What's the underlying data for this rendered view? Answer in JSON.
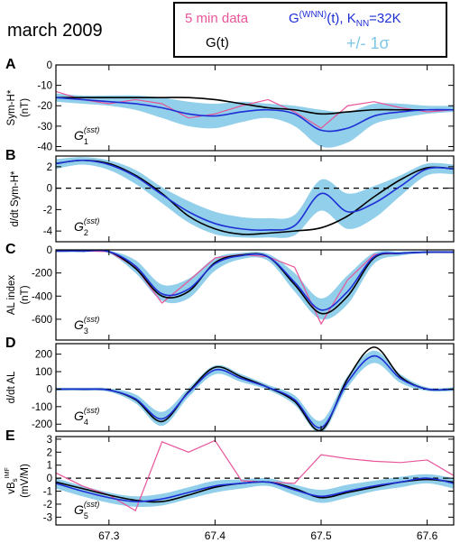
{
  "figure": {
    "title": "march 2009",
    "legend": {
      "five_min": "5 min data",
      "wnn_main": "G",
      "wnn_sup": "(WNN)",
      "wnn_tail": "(t), K",
      "knn_sub": "NN",
      "knn_val": "=32K",
      "gt": "G(t)",
      "sigma": "+/- 1σ"
    },
    "colors": {
      "five_min": "#e8559a",
      "wnn": "#1f2fd6",
      "gt": "#000000",
      "band": "#7ec7e6",
      "zero": "#000000"
    }
  },
  "chart_data": [
    {
      "type": "line",
      "panel": "A",
      "ylabel": "Sym-H*",
      "ylabel2": "(nT)",
      "annotation": "G1",
      "annotation_sub": "1",
      "ylim": [
        -42,
        0
      ],
      "yticks": [
        0,
        -10,
        -20,
        -30,
        -40
      ],
      "xlim": [
        67.25,
        67.625
      ],
      "zero_line": false,
      "x": [
        67.25,
        67.275,
        67.3,
        67.325,
        67.35,
        67.375,
        67.4,
        67.425,
        67.45,
        67.475,
        67.5,
        67.525,
        67.55,
        67.575,
        67.6,
        67.625
      ],
      "series": [
        {
          "role": "five_min",
          "values": [
            -13,
            -17,
            -19,
            -17,
            -19,
            -26,
            -24,
            -20,
            -17,
            -23,
            -31,
            -20,
            -18,
            -21,
            -23,
            -22
          ]
        },
        {
          "role": "wnn",
          "values": [
            -16,
            -17,
            -18,
            -19,
            -21,
            -24,
            -25,
            -23,
            -22,
            -24,
            -32,
            -31,
            -25,
            -23,
            -22,
            -22
          ]
        },
        {
          "role": "gt",
          "values": [
            -16,
            -16,
            -16,
            -16,
            -16,
            -16,
            -17,
            -19,
            -21,
            -22,
            -24,
            -23,
            -22,
            -22,
            -22,
            -22
          ]
        }
      ],
      "band": {
        "upper": [
          -14,
          -15,
          -15,
          -15,
          -16,
          -18,
          -19,
          -18,
          -19,
          -20,
          -22,
          -23,
          -19,
          -19,
          -20,
          -20
        ],
        "lower": [
          -18,
          -19,
          -20,
          -22,
          -26,
          -30,
          -31,
          -28,
          -26,
          -30,
          -40,
          -38,
          -29,
          -26,
          -24,
          -23
        ]
      }
    },
    {
      "type": "line",
      "panel": "B",
      "ylabel": "d/dt Sym-H*",
      "ylabel2": "",
      "annotation": "G2",
      "annotation_sub": "2",
      "ylim": [
        -5,
        3
      ],
      "yticks": [
        2,
        0,
        -2,
        -4
      ],
      "xlim": [
        67.25,
        67.625
      ],
      "zero_line": true,
      "x": [
        67.25,
        67.275,
        67.3,
        67.325,
        67.35,
        67.375,
        67.4,
        67.425,
        67.45,
        67.475,
        67.5,
        67.525,
        67.55,
        67.575,
        67.6,
        67.625
      ],
      "series": [
        {
          "role": "wnn",
          "values": [
            2.3,
            2.6,
            2.2,
            1.1,
            -0.6,
            -2.2,
            -3.3,
            -3.8,
            -3.9,
            -3.5,
            -0.5,
            -2.2,
            -1.4,
            0.2,
            1.8,
            1.8
          ]
        },
        {
          "role": "gt",
          "values": [
            2.3,
            2.6,
            2.3,
            1.2,
            -0.5,
            -2.6,
            -3.8,
            -4.3,
            -4.2,
            -4.0,
            -3.7,
            -2.6,
            -0.8,
            0.8,
            1.9,
            1.8
          ]
        }
      ],
      "band": {
        "upper": [
          2.7,
          2.9,
          2.6,
          1.7,
          0.1,
          -1.2,
          -2.2,
          -2.7,
          -2.8,
          -2.5,
          0.8,
          -0.5,
          0.2,
          1.2,
          2.3,
          2.2
        ],
        "lower": [
          1.8,
          2.2,
          1.7,
          0.4,
          -1.4,
          -3.2,
          -4.3,
          -4.6,
          -4.6,
          -4.4,
          -2.1,
          -3.8,
          -2.8,
          -0.7,
          1.2,
          1.3
        ]
      }
    },
    {
      "type": "line",
      "panel": "C",
      "ylabel": "AL index",
      "ylabel2": "(nT)",
      "annotation": "G3",
      "annotation_sub": "3",
      "ylim": [
        -780,
        0
      ],
      "yticks": [
        0,
        -200,
        -400,
        -600
      ],
      "xlim": [
        67.25,
        67.625
      ],
      "zero_line": false,
      "x": [
        67.25,
        67.275,
        67.3,
        67.325,
        67.35,
        67.375,
        67.4,
        67.425,
        67.45,
        67.475,
        67.5,
        67.525,
        67.55,
        67.575,
        67.6,
        67.625
      ],
      "series": [
        {
          "role": "five_min",
          "values": [
            -10,
            -10,
            -15,
            -150,
            -460,
            -270,
            -70,
            -40,
            -60,
            -150,
            -640,
            -260,
            -40,
            -30,
            -20,
            -20
          ]
        },
        {
          "role": "wnn",
          "values": [
            -10,
            -10,
            -15,
            -140,
            -380,
            -340,
            -120,
            -50,
            -60,
            -280,
            -520,
            -360,
            -60,
            -30,
            -20,
            -20
          ]
        },
        {
          "role": "gt",
          "values": [
            -10,
            -10,
            -15,
            -160,
            -400,
            -360,
            -110,
            -45,
            -60,
            -300,
            -550,
            -400,
            -70,
            -30,
            -20,
            -20
          ]
        }
      ],
      "band": {
        "upper": [
          -5,
          -5,
          -8,
          -90,
          -300,
          -250,
          -70,
          -25,
          -35,
          -200,
          -420,
          -220,
          -25,
          -15,
          -10,
          -10
        ],
        "lower": [
          -20,
          -20,
          -30,
          -200,
          -440,
          -420,
          -180,
          -80,
          -95,
          -360,
          -600,
          -470,
          -120,
          -50,
          -30,
          -30
        ]
      }
    },
    {
      "type": "line",
      "panel": "D",
      "ylabel": "d/dt AL",
      "ylabel2": "",
      "annotation": "G4",
      "annotation_sub": "4",
      "ylim": [
        -240,
        260
      ],
      "yticks": [
        200,
        100,
        0,
        -100,
        -200
      ],
      "xlim": [
        67.25,
        67.625
      ],
      "zero_line": true,
      "x": [
        67.25,
        67.275,
        67.3,
        67.325,
        67.35,
        67.375,
        67.4,
        67.425,
        67.45,
        67.475,
        67.5,
        67.525,
        67.55,
        67.575,
        67.6,
        67.625
      ],
      "series": [
        {
          "role": "wnn",
          "values": [
            0,
            0,
            -5,
            -55,
            -170,
            -20,
            110,
            60,
            10,
            -60,
            -220,
            40,
            190,
            60,
            0,
            0
          ]
        },
        {
          "role": "gt",
          "values": [
            0,
            0,
            -5,
            -60,
            -185,
            -15,
            125,
            70,
            10,
            -70,
            -235,
            60,
            240,
            70,
            0,
            0
          ]
        }
      ],
      "band": {
        "upper": [
          8,
          8,
          5,
          -30,
          -130,
          5,
          135,
          85,
          25,
          -35,
          -180,
          75,
          220,
          85,
          10,
          10
        ],
        "lower": [
          -8,
          -8,
          -15,
          -80,
          -210,
          -45,
          85,
          40,
          -5,
          -90,
          -250,
          10,
          150,
          35,
          -10,
          -10
        ]
      }
    },
    {
      "type": "line",
      "panel": "E",
      "ylabel": "vBs",
      "ylabel_sup": "IMF",
      "ylabel_sub": "s",
      "ylabel2": "(mV/M)",
      "annotation": "G5",
      "annotation_sub": "5",
      "ylim": [
        -3.6,
        3.2
      ],
      "yticks": [
        3,
        2,
        1,
        0,
        -1,
        -2,
        -3
      ],
      "xlim": [
        67.25,
        67.625
      ],
      "zero_line": true,
      "x": [
        67.25,
        67.275,
        67.3,
        67.325,
        67.35,
        67.375,
        67.4,
        67.425,
        67.45,
        67.475,
        67.5,
        67.525,
        67.55,
        67.575,
        67.6,
        67.625
      ],
      "series": [
        {
          "role": "five_min",
          "values": [
            0.4,
            -0.6,
            -1.3,
            -2.5,
            2.8,
            2.0,
            2.9,
            -0.2,
            -0.3,
            -0.4,
            1.8,
            1.5,
            1.3,
            1.2,
            1.4,
            0.2
          ]
        },
        {
          "role": "wnn",
          "values": [
            -0.4,
            -1.0,
            -1.5,
            -1.8,
            -1.6,
            -1.1,
            -0.6,
            -0.4,
            -0.3,
            -0.9,
            -1.4,
            -1.0,
            -0.6,
            -0.3,
            0.0,
            -0.4
          ]
        },
        {
          "role": "gt",
          "values": [
            -0.3,
            -0.8,
            -1.3,
            -1.7,
            -1.8,
            -1.3,
            -0.7,
            -0.4,
            -0.3,
            -0.8,
            -1.5,
            -1.1,
            -0.7,
            -0.3,
            -0.1,
            -0.3
          ]
        }
      ],
      "band": {
        "upper": [
          0.0,
          -0.6,
          -1.1,
          -1.4,
          -1.2,
          -0.7,
          -0.2,
          -0.1,
          0.0,
          -0.5,
          -0.9,
          -0.5,
          -0.2,
          0.1,
          0.3,
          0.0
        ],
        "lower": [
          -0.8,
          -1.4,
          -1.9,
          -2.2,
          -2.1,
          -1.6,
          -1.1,
          -0.8,
          -0.6,
          -1.3,
          -1.9,
          -1.5,
          -1.0,
          -0.7,
          -0.4,
          -0.8
        ]
      }
    }
  ],
  "xaxis": {
    "ticks": [
      67.3,
      67.4,
      67.5,
      67.6
    ],
    "tick_labels": [
      "67.3",
      "67.4",
      "67.5",
      "67.6"
    ]
  },
  "panel_labels": [
    "A",
    "B",
    "C",
    "D",
    "E"
  ]
}
